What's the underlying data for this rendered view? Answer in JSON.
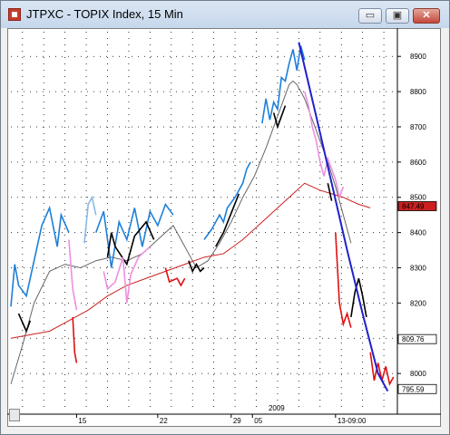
{
  "window": {
    "title": "JTPXC - TOPIX Index, 15 Min",
    "buttons": {
      "minimize": "▭",
      "maximize": "▣",
      "close": "✕"
    }
  },
  "colors": {
    "up": "#1e7fd8",
    "up_light": "#8ab8e6",
    "down": "#ee8fe0",
    "down_strong": "#e01010",
    "flat": "#000000",
    "ma_fast": "#666666",
    "ma_slow": "#cc2020",
    "trendline": "#2020cc"
  },
  "chart_data": {
    "type": "line",
    "title": "JTPXC - TOPIX Index, 15 Min",
    "xlabel": "",
    "ylabel": "",
    "ylim": [
      790,
      897
    ],
    "y_ticks": [
      800,
      810,
      820,
      830,
      840,
      850,
      860,
      870,
      880,
      890
    ],
    "y_tick_labels": [
      "8000",
      "8100",
      "8200",
      "8300",
      "8400",
      "8500",
      "8600",
      "8700",
      "8800",
      "8900"
    ],
    "x_tick_labels": [
      {
        "label": "15",
        "t": 0.17
      },
      {
        "label": "22",
        "t": 0.38
      },
      {
        "label": "29",
        "t": 0.57
      },
      {
        "label": "05",
        "t": 0.625
      },
      {
        "label": "13-09:00",
        "t": 0.84
      }
    ],
    "year_label": {
      "label": "2009",
      "t": 0.69
    },
    "price_tags": [
      {
        "label": "847.49",
        "value": 847.49,
        "color": "#cc2020"
      },
      {
        "label": "809.76",
        "value": 809.76,
        "color": "#ffffff"
      },
      {
        "label": "795.59",
        "value": 795.59,
        "color": "#ffffff"
      }
    ],
    "series": [
      {
        "color": "#1e7fd8",
        "points": [
          [
            0.0,
            819
          ],
          [
            0.01,
            831
          ],
          [
            0.02,
            825
          ],
          [
            0.04,
            822
          ],
          [
            0.06,
            832
          ],
          [
            0.08,
            842
          ],
          [
            0.1,
            847
          ],
          [
            0.12,
            836
          ],
          [
            0.13,
            845
          ],
          [
            0.15,
            840
          ]
        ]
      },
      {
        "color": "#000000",
        "points": [
          [
            0.02,
            817
          ],
          [
            0.04,
            812
          ],
          [
            0.05,
            815
          ]
        ]
      },
      {
        "color": "#ee8fe0",
        "points": [
          [
            0.15,
            838
          ],
          [
            0.16,
            824
          ],
          [
            0.17,
            818
          ]
        ]
      },
      {
        "color": "#e01010",
        "points": [
          [
            0.16,
            816
          ],
          [
            0.165,
            806
          ],
          [
            0.17,
            803
          ]
        ]
      },
      {
        "color": "#8ab8e6",
        "points": [
          [
            0.19,
            837
          ],
          [
            0.2,
            848
          ],
          [
            0.21,
            850
          ],
          [
            0.22,
            845
          ]
        ]
      },
      {
        "color": "#1e7fd8",
        "points": [
          [
            0.22,
            840
          ],
          [
            0.24,
            846
          ],
          [
            0.26,
            830
          ],
          [
            0.28,
            843
          ],
          [
            0.3,
            838
          ],
          [
            0.32,
            847
          ],
          [
            0.34,
            836
          ],
          [
            0.36,
            846
          ],
          [
            0.38,
            842
          ],
          [
            0.4,
            848
          ],
          [
            0.42,
            845
          ]
        ]
      },
      {
        "color": "#000000",
        "points": [
          [
            0.25,
            833
          ],
          [
            0.26,
            840
          ],
          [
            0.27,
            836
          ],
          [
            0.3,
            831
          ],
          [
            0.32,
            839
          ],
          [
            0.35,
            843
          ],
          [
            0.37,
            838
          ]
        ]
      },
      {
        "color": "#ee8fe0",
        "points": [
          [
            0.24,
            829
          ],
          [
            0.25,
            824
          ],
          [
            0.27,
            826
          ],
          [
            0.29,
            833
          ],
          [
            0.3,
            820
          ],
          [
            0.31,
            828
          ],
          [
            0.33,
            833
          ],
          [
            0.36,
            836
          ]
        ]
      },
      {
        "color": "#e01010",
        "points": [
          [
            0.4,
            830
          ],
          [
            0.41,
            826
          ],
          [
            0.43,
            827
          ],
          [
            0.44,
            825
          ],
          [
            0.45,
            827
          ]
        ]
      },
      {
        "color": "#000000",
        "points": [
          [
            0.46,
            832
          ],
          [
            0.47,
            829
          ],
          [
            0.48,
            831
          ],
          [
            0.49,
            829
          ],
          [
            0.5,
            830
          ]
        ]
      },
      {
        "color": "#1e7fd8",
        "points": [
          [
            0.5,
            838
          ],
          [
            0.52,
            841
          ],
          [
            0.54,
            845
          ],
          [
            0.55,
            843
          ],
          [
            0.56,
            847
          ],
          [
            0.58,
            850
          ],
          [
            0.6,
            854
          ],
          [
            0.61,
            858
          ],
          [
            0.62,
            860
          ]
        ]
      },
      {
        "color": "#000000",
        "points": [
          [
            0.53,
            836
          ],
          [
            0.55,
            840
          ],
          [
            0.59,
            851
          ]
        ]
      },
      {
        "color": "#1e7fd8",
        "points": [
          [
            0.65,
            871
          ],
          [
            0.66,
            878
          ],
          [
            0.67,
            872
          ],
          [
            0.68,
            877
          ],
          [
            0.69,
            875
          ],
          [
            0.7,
            884
          ],
          [
            0.71,
            883
          ],
          [
            0.72,
            888
          ],
          [
            0.73,
            892
          ],
          [
            0.74,
            886
          ],
          [
            0.75,
            893
          ],
          [
            0.76,
            889
          ]
        ]
      },
      {
        "color": "#000000",
        "points": [
          [
            0.68,
            874
          ],
          [
            0.69,
            870
          ],
          [
            0.7,
            873
          ],
          [
            0.71,
            876
          ]
        ]
      },
      {
        "color": "#ee8fe0",
        "points": [
          [
            0.76,
            880
          ],
          [
            0.77,
            876
          ],
          [
            0.78,
            870
          ],
          [
            0.79,
            866
          ],
          [
            0.8,
            860
          ],
          [
            0.81,
            856
          ],
          [
            0.82,
            861
          ],
          [
            0.83,
            858
          ],
          [
            0.84,
            855
          ],
          [
            0.85,
            850
          ],
          [
            0.86,
            853
          ]
        ]
      },
      {
        "color": "#000000",
        "points": [
          [
            0.82,
            854
          ],
          [
            0.83,
            849
          ]
        ]
      },
      {
        "color": "#e01010",
        "points": [
          [
            0.84,
            840
          ],
          [
            0.85,
            820
          ],
          [
            0.86,
            814
          ],
          [
            0.87,
            817
          ],
          [
            0.88,
            813
          ]
        ]
      },
      {
        "color": "#000000",
        "points": [
          [
            0.88,
            816
          ],
          [
            0.89,
            823
          ],
          [
            0.9,
            827
          ],
          [
            0.91,
            822
          ],
          [
            0.92,
            816
          ]
        ]
      },
      {
        "color": "#e01010",
        "points": [
          [
            0.93,
            806
          ],
          [
            0.94,
            798
          ],
          [
            0.95,
            803
          ],
          [
            0.96,
            798
          ],
          [
            0.97,
            802
          ],
          [
            0.98,
            797
          ],
          [
            0.99,
            799
          ]
        ]
      }
    ],
    "moving_averages": [
      {
        "color": "#666666",
        "points": [
          [
            0.0,
            797
          ],
          [
            0.03,
            808
          ],
          [
            0.06,
            820
          ],
          [
            0.1,
            829
          ],
          [
            0.14,
            831
          ],
          [
            0.18,
            830
          ],
          [
            0.22,
            832
          ],
          [
            0.26,
            833
          ],
          [
            0.3,
            832
          ],
          [
            0.34,
            834
          ],
          [
            0.38,
            838
          ],
          [
            0.42,
            842
          ],
          [
            0.44,
            838
          ],
          [
            0.46,
            834
          ],
          [
            0.48,
            830
          ],
          [
            0.51,
            832
          ],
          [
            0.54,
            837
          ],
          [
            0.57,
            843
          ],
          [
            0.6,
            850
          ],
          [
            0.63,
            856
          ],
          [
            0.66,
            864
          ],
          [
            0.69,
            873
          ],
          [
            0.71,
            879
          ],
          [
            0.72,
            882
          ],
          [
            0.73,
            883
          ],
          [
            0.74,
            882
          ],
          [
            0.76,
            878
          ],
          [
            0.78,
            872
          ],
          [
            0.8,
            866
          ],
          [
            0.82,
            860
          ],
          [
            0.84,
            853
          ],
          [
            0.86,
            845
          ],
          [
            0.88,
            837
          ]
        ]
      },
      {
        "color": "#cc2020",
        "points": [
          [
            0.0,
            810
          ],
          [
            0.05,
            811
          ],
          [
            0.1,
            812
          ],
          [
            0.15,
            815
          ],
          [
            0.2,
            818
          ],
          [
            0.25,
            822
          ],
          [
            0.3,
            825
          ],
          [
            0.35,
            827
          ],
          [
            0.4,
            829
          ],
          [
            0.45,
            831
          ],
          [
            0.5,
            833
          ],
          [
            0.55,
            834
          ],
          [
            0.6,
            838
          ],
          [
            0.65,
            843
          ],
          [
            0.7,
            848
          ],
          [
            0.74,
            852
          ],
          [
            0.76,
            854
          ],
          [
            0.78,
            853
          ],
          [
            0.8,
            852
          ],
          [
            0.83,
            851
          ],
          [
            0.86,
            850
          ],
          [
            0.9,
            848
          ],
          [
            0.93,
            847
          ]
        ]
      }
    ],
    "trendline": {
      "color": "#2020cc",
      "points": [
        [
          0.745,
          894
        ],
        [
          0.79,
          873
        ],
        [
          0.83,
          854
        ],
        [
          0.87,
          835
        ],
        [
          0.91,
          817
        ],
        [
          0.95,
          800
        ],
        [
          0.975,
          795
        ]
      ]
    }
  }
}
